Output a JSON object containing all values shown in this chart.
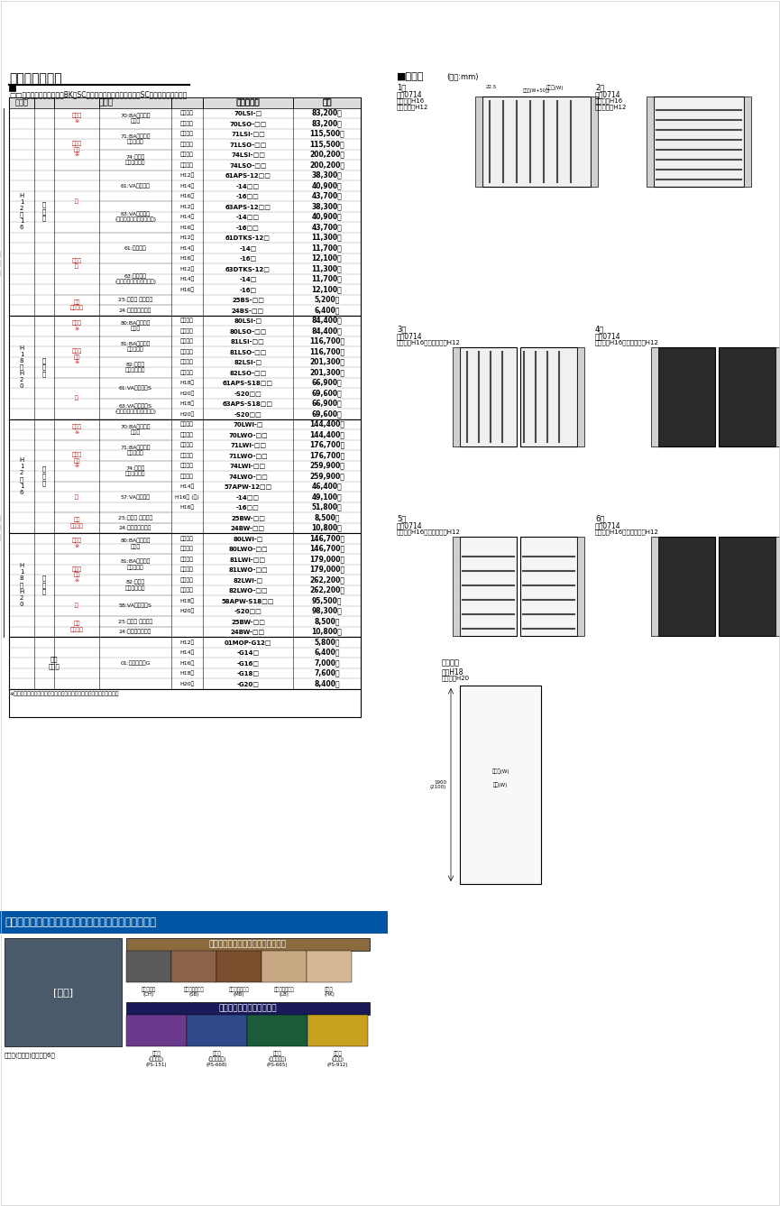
{
  "title": "共通部品価格表",
  "bg_color": "#ffffff",
  "header_note": "□□内（カラーコード）／BK・SC　本体が木調カラーの場合はSCをご使用ください。",
  "col_headers": [
    "品　名",
    "型式コード",
    "価格"
  ],
  "table_rows": [
    {
      "group1": "H\n1\n2\n〜\n1\n6",
      "group2": "片開き",
      "cat1": "錠金具\n※",
      "cat2": "70:BAプッシュ\nプル錠",
      "cat3": "内開き用",
      "code": "70LSI-□",
      "price": "83,200円"
    },
    {
      "cat3": "外開き用",
      "code": "70LSO-□□",
      "price": "83,200円"
    },
    {
      "cat1": "電気錠\n金具\n※",
      "cat2": "71:BAプッシュ\nプル電気錠",
      "cat3": "内開き用",
      "code": "71LSI-□□",
      "price": "115,500円"
    },
    {
      "cat3": "外開き用",
      "code": "71LSO-□□",
      "price": "115,500円"
    },
    {
      "cat2": "74:マルチ\nエントリー錠",
      "cat3": "内開き用",
      "code": "74LSI-□□",
      "price": "200,200円"
    },
    {
      "cat3": "外開き用",
      "code": "74LSO-□□",
      "price": "200,200円"
    },
    {
      "cat1": "柱",
      "cat2": "61:VAアルミ柱",
      "cat3": "H12用",
      "code": "61APS-12□□",
      "price": "38,300円"
    },
    {
      "cat3": "H14用",
      "code": "-14□□",
      "price": "40,900円"
    },
    {
      "cat3": "H16用",
      "code": "-16□□",
      "price": "43,700円"
    },
    {
      "cat2": "63:VAアルミ柱\n（マルチエントリー錠仕様）",
      "cat3": "H12用",
      "code": "63APS-12□□",
      "price": "38,300円"
    },
    {
      "cat3": "H14用",
      "code": "-14□□",
      "price": "40,900円"
    },
    {
      "cat3": "H16用",
      "code": "-16□□",
      "price": "43,700円"
    },
    {
      "cat1": "戸当り框",
      "cat2": "61:戸当り框",
      "cat3": "H12用",
      "code": "61DTKS-12□",
      "price": "11,300円"
    },
    {
      "cat3": "H14用",
      "code": "-14□",
      "price": "11,700円"
    },
    {
      "cat3": "H16用",
      "code": "-16□",
      "price": "12,100円"
    },
    {
      "cat2": "63:戸当り框\n（マルチエントリー錠仕様）",
      "cat3": "H12用",
      "code": "63DTKS-12□",
      "price": "11,300円"
    },
    {
      "cat3": "H14用",
      "code": "-14□",
      "price": "11,700円"
    },
    {
      "cat3": "H16用",
      "code": "-16□",
      "price": "12,100円"
    },
    {
      "cat1": "埋込\nヒジツボ",
      "cat2": "25:アルミ ヒジツボ",
      "cat3": "",
      "code": "25BS-□□",
      "price": "5,200円"
    },
    {
      "cat2": "24:半調整ヒジツボ",
      "cat3": "",
      "code": "24BS-□□",
      "price": "6,400円"
    }
  ],
  "footnote": "※錠金具には扉に内蔵されています施解錠部品は含まれておりません。",
  "accent_title": "カラーコーディネイトが楽しめるアクセントカラー。",
  "wood_color_title": "木調カラー（受注生産品・特注品）",
  "wood_colors": [
    {
      "name": "チャコール\n(CH)",
      "color": "#5a5a5a"
    },
    {
      "name": "セピアブラウン\n(SB)",
      "color": "#8B6347"
    },
    {
      "name": "マロンブラウン\n(MB)",
      "color": "#7B4F2E"
    },
    {
      "name": "ライトブラウン\n(LB)",
      "color": "#C8A882"
    },
    {
      "name": "ヒノキ\n(HK)",
      "color": "#D4B896"
    }
  ],
  "vivid_color_title": "ビビッドカラー（特注品）",
  "vivid_colors": [
    {
      "name": "縹藍色\n(えんじゅ)\n(PS-151)",
      "color": "#6B3A8C"
    },
    {
      "name": "群青色\n(ぐんじょう)\n(PS-668)",
      "color": "#2E4A8B"
    },
    {
      "name": "深緑色\n(ふかみどり)\n(PS-665)",
      "color": "#1A5C3A"
    },
    {
      "name": "黄金色\n(こがね)\n(PS-912)",
      "color": "#C8A020"
    }
  ]
}
